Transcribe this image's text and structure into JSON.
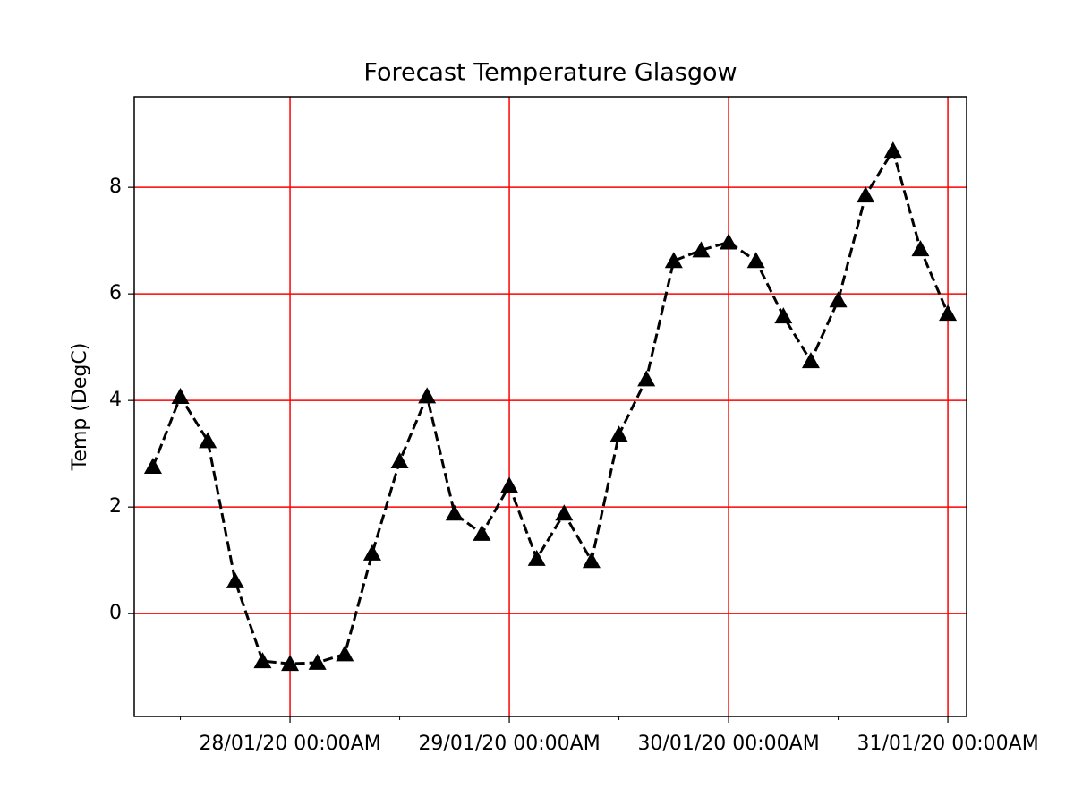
{
  "chart_data": {
    "type": "line",
    "title": "Forecast Temperature Glasgow",
    "y_label": "Temp (DegC)",
    "x": [
      "2020-01-27T09:00",
      "2020-01-27T12:00",
      "2020-01-27T15:00",
      "2020-01-27T18:00",
      "2020-01-27T21:00",
      "2020-01-28T00:00",
      "2020-01-28T03:00",
      "2020-01-28T06:00",
      "2020-01-28T09:00",
      "2020-01-28T12:00",
      "2020-01-28T15:00",
      "2020-01-28T18:00",
      "2020-01-28T21:00",
      "2020-01-29T00:00",
      "2020-01-29T03:00",
      "2020-01-29T06:00",
      "2020-01-29T09:00",
      "2020-01-29T12:00",
      "2020-01-29T15:00",
      "2020-01-29T18:00",
      "2020-01-29T21:00",
      "2020-01-30T00:00",
      "2020-01-30T03:00",
      "2020-01-30T06:00",
      "2020-01-30T09:00",
      "2020-01-30T12:00",
      "2020-01-30T15:00",
      "2020-01-30T18:00",
      "2020-01-30T21:00",
      "2020-01-31T00:00"
    ],
    "series": [
      {
        "color": "#000000",
        "line_style": "dashed",
        "marker": "triangle",
        "values": [
          2.76,
          4.07,
          3.24,
          0.61,
          -0.89,
          -0.94,
          -0.92,
          -0.76,
          1.13,
          2.86,
          4.08,
          1.88,
          1.5,
          2.4,
          1.03,
          1.88,
          0.99,
          3.36,
          4.4,
          6.62,
          6.82,
          6.97,
          6.62,
          5.58,
          4.74,
          5.88,
          7.85,
          8.69,
          6.84,
          5.63
        ]
      }
    ],
    "xlim": [
      "2020-01-27T06:57",
      "2020-01-31T02:03"
    ],
    "xticks": [
      {
        "value": "2020-01-28T00:00",
        "label": "28/01/20 00:00AM"
      },
      {
        "value": "2020-01-29T00:00",
        "label": "29/01/20 00:00AM"
      },
      {
        "value": "2020-01-30T00:00",
        "label": "30/01/20 00:00AM"
      },
      {
        "value": "2020-01-31T00:00",
        "label": "31/01/20 00:00AM"
      }
    ],
    "xminorticks": [
      "2020-01-27T12:00",
      "2020-01-28T12:00",
      "2020-01-29T12:00",
      "2020-01-30T12:00"
    ],
    "ylim": [
      -1.93,
      9.7
    ],
    "yticks": [
      0,
      2,
      4,
      6,
      8
    ],
    "grid": true,
    "grid_color": "#ff0000"
  }
}
